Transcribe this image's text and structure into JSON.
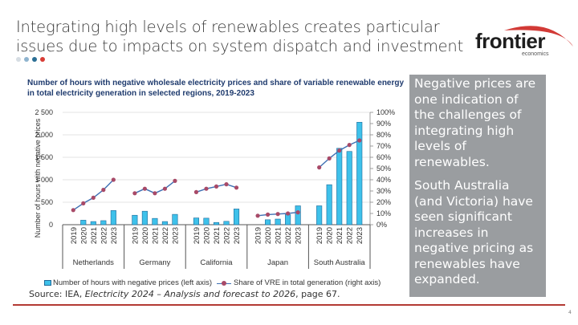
{
  "slide": {
    "title": "Integrating high levels of renewables creates particular issues due to impacts on system dispatch and investment",
    "dots": [
      "#d6dde3",
      "#8fb4cf",
      "#2a6e94",
      "#d83c35"
    ],
    "logo": {
      "word": "frontier",
      "sub": "economics",
      "accent": "#d23a36"
    },
    "source_prefix": "Source: IEA, ",
    "source_title": "Electricity 2024 – Analysis and forecast to 2026",
    "source_suffix": ", page 67.",
    "page_number": "4",
    "callout": {
      "p1": "Negative prices are one indication of the challenges of integrating high levels of renewables.",
      "p2": "South Australia (and Victoria) have seen significant increases in negative pricing as renewables have expanded."
    }
  },
  "chart_data": {
    "type": "bar",
    "title": "Number of hours with negative wholesale electricity prices and share of variable renewable energy in total electricity generation in selected regions, 2019-2023",
    "ylabel": "Number of hours with negative prices",
    "ylim": [
      0,
      2500
    ],
    "yticks": [
      "0",
      "500",
      "1 000",
      "1 500",
      "2 000",
      "2 500"
    ],
    "y2lim": [
      0,
      100
    ],
    "y2ticks": [
      "0%",
      "10%",
      "20%",
      "30%",
      "40%",
      "50%",
      "60%",
      "70%",
      "80%",
      "90%",
      "100%"
    ],
    "years": [
      "2019",
      "2020",
      "2021",
      "2022",
      "2023"
    ],
    "grid": true,
    "legend_position": "bottom",
    "groups": [
      {
        "name": "Netherlands",
        "hours": [
          0,
          100,
          70,
          90,
          315
        ],
        "vre_share": [
          13,
          19,
          24,
          31,
          40
        ]
      },
      {
        "name": "Germany",
        "hours": [
          210,
          300,
          140,
          70,
          230
        ],
        "vre_share": [
          28,
          32,
          28,
          32,
          39
        ]
      },
      {
        "name": "California",
        "hours": [
          150,
          145,
          50,
          75,
          350
        ],
        "vre_share": [
          29,
          32,
          34,
          36,
          33
        ]
      },
      {
        "name": "Japan",
        "hours": [
          0,
          110,
          125,
          225,
          420
        ],
        "vre_share": [
          8,
          9,
          9.5,
          10,
          11
        ]
      },
      {
        "name": "South Australia",
        "hours": [
          420,
          890,
          1700,
          1630,
          2280
        ],
        "vre_share": [
          51,
          59,
          66,
          71,
          75
        ]
      }
    ],
    "series": [
      {
        "name": "Number of hours with negative prices (left axis)",
        "type": "bar",
        "color": "#3ec1ea"
      },
      {
        "name": "Share of VRE in total generation (right axis)",
        "type": "line",
        "color": "#3d6fb3",
        "marker_color": "#a84a68"
      }
    ]
  }
}
